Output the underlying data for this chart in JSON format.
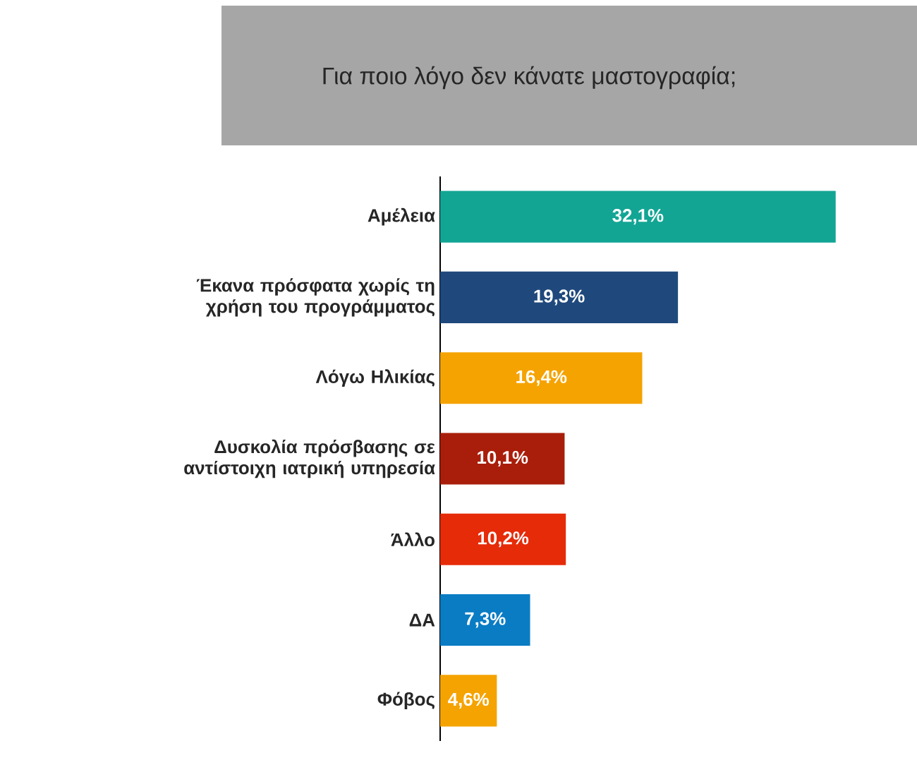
{
  "chart_data": {
    "type": "bar",
    "orientation": "horizontal",
    "title": "Για ποιο λόγο δεν κάνατε μαστογραφία;",
    "categories": [
      "Αμέλεια",
      "Έκανα πρόσφατα χωρίς τη χρήση του προγράμματος",
      "Λόγω Ηλικίας",
      "Δυσκολία πρόσβασης σε αντίστοιχη ιατρική υπηρεσία",
      "Άλλο",
      "ΔΑ",
      "Φόβος"
    ],
    "values": [
      32.1,
      19.3,
      16.4,
      10.1,
      10.2,
      7.3,
      4.6
    ],
    "colors": [
      "#12a594",
      "#1f497d",
      "#f5a300",
      "#a91e0a",
      "#e62b09",
      "#0a7cc4",
      "#f5a300"
    ],
    "value_labels": [
      "32,1%",
      "19,3%",
      "16,4%",
      "10,1%",
      "10,2%",
      "7,3%",
      "4,6%"
    ]
  }
}
